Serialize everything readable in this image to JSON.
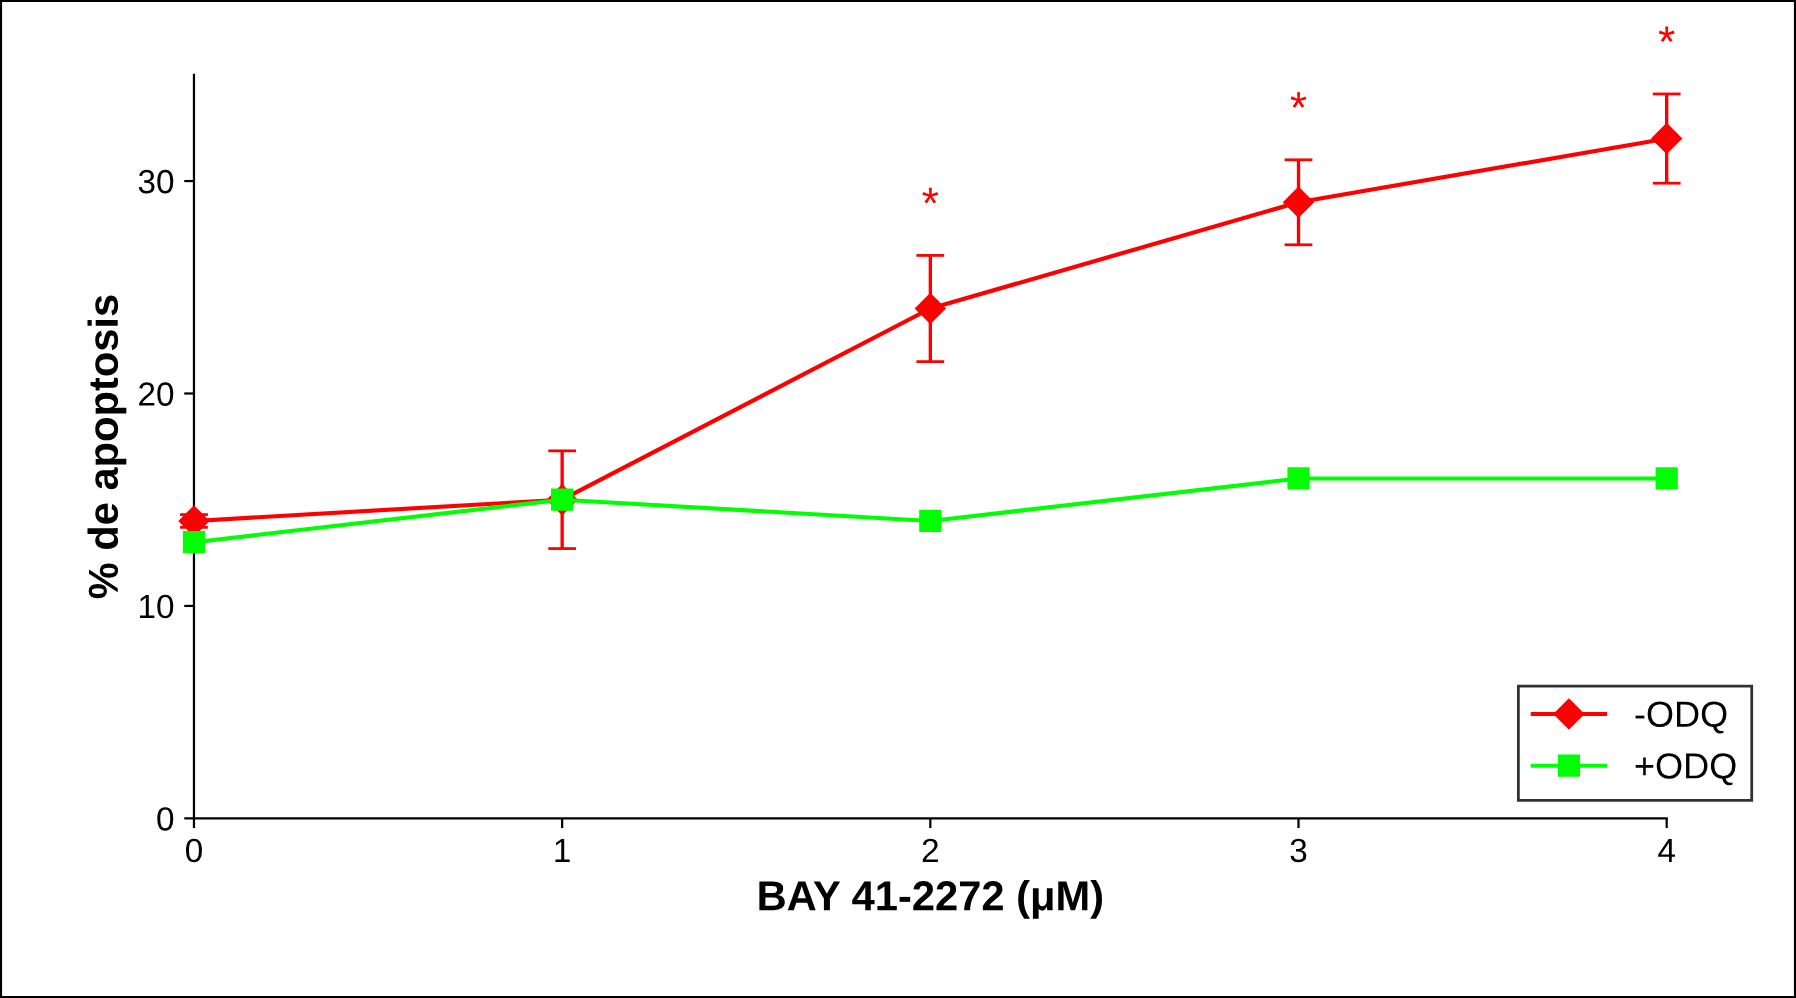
{
  "chart_data": {
    "type": "line",
    "xlabel": "BAY 41-2272 (μM)",
    "ylabel": "% de apoptosis",
    "x": [
      0,
      1,
      2,
      3,
      4
    ],
    "series": [
      {
        "name": "-ODQ",
        "color": "#ff0000",
        "values": [
          14,
          15,
          24,
          29,
          32
        ],
        "errors": [
          0.3,
          2.3,
          2.5,
          2,
          2.1
        ],
        "marker": "diamond"
      },
      {
        "name": "+ODQ",
        "color": "#00ff00",
        "values": [
          13,
          15,
          14,
          16,
          16
        ],
        "marker": "square"
      }
    ],
    "xlim": [
      0,
      4
    ],
    "ylim": [
      0,
      35
    ],
    "xticks": [
      0,
      1,
      2,
      3,
      4
    ],
    "yticks": [
      0,
      10,
      20,
      30
    ],
    "annotations": [
      "*",
      "*",
      "*"
    ],
    "legend": "bottom right",
    "grid": false,
    "line_style": "solid"
  }
}
